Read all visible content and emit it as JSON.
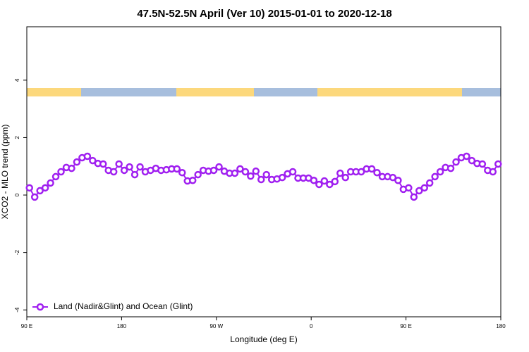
{
  "chart_data": {
    "type": "line",
    "title": "47.5N-52.5N April (Ver 10)   2015-01-01 to 2020-12-18",
    "x_label": "Longitude (deg E)",
    "y_label": "XCO2 - MLO trend (ppm)",
    "xlim": [
      90,
      540
    ],
    "ylim": [
      -4.24,
      5.86
    ],
    "xticks": [
      {
        "value": 90,
        "label": "90 E"
      },
      180,
      {
        "value": 270,
        "label": "90 W"
      },
      {
        "value": 360,
        "label": "0"
      },
      {
        "value": 450,
        "label": "90 E"
      },
      {
        "value": 540,
        "label": "180"
      }
    ],
    "yticks": [
      -4,
      -2,
      0,
      2,
      4
    ],
    "legend": "bottom-left",
    "x": [
      92.5,
      97.5,
      102.5,
      107.5,
      112.5,
      117.5,
      122.5,
      127.5,
      132.5,
      137.5,
      142.5,
      147.5,
      152.5,
      157.5,
      162.5,
      167.5,
      172.5,
      177.5,
      182.5,
      187.5,
      192.5,
      197.5,
      202.5,
      207.5,
      212.5,
      217.5,
      222.5,
      227.5,
      232.5,
      237.5,
      242.5,
      247.5,
      252.5,
      257.5,
      262.5,
      267.5,
      272.5,
      277.5,
      282.5,
      287.5,
      292.5,
      297.5,
      302.5,
      307.5,
      312.5,
      317.5,
      322.5,
      327.5,
      332.5,
      337.5,
      342.5,
      347.5,
      352.5,
      357.5,
      362.5,
      367.5,
      372.5,
      377.5,
      382.5,
      387.5,
      392.5,
      397.5,
      402.5,
      407.5,
      412.5,
      417.5,
      422.5,
      427.5,
      432.5,
      437.5,
      442.5,
      447.5,
      452.5,
      457.5,
      462.5,
      467.5,
      472.5,
      477.5,
      482.5,
      487.5,
      492.5,
      497.5,
      502.5,
      507.5,
      512.5,
      517.5,
      522.5,
      527.5,
      532.5,
      537.5
    ],
    "series": [
      {
        "name": "Land (Nadir&Glint) and Ocean (Glint)",
        "color": "#a020f0",
        "values": [
          0.25,
          -0.07,
          0.15,
          0.25,
          0.42,
          0.64,
          0.81,
          0.96,
          0.93,
          1.15,
          1.3,
          1.35,
          1.2,
          1.1,
          1.08,
          0.86,
          0.81,
          1.08,
          0.86,
          0.98,
          0.71,
          0.98,
          0.81,
          0.86,
          0.93,
          0.86,
          0.88,
          0.91,
          0.91,
          0.78,
          0.49,
          0.51,
          0.71,
          0.86,
          0.83,
          0.86,
          0.98,
          0.83,
          0.76,
          0.76,
          0.91,
          0.81,
          0.66,
          0.83,
          0.54,
          0.71,
          0.54,
          0.56,
          0.61,
          0.74,
          0.81,
          0.59,
          0.59,
          0.59,
          0.51,
          0.37,
          0.49,
          0.37,
          0.47,
          0.76,
          0.61,
          0.81,
          0.81,
          0.81,
          0.91,
          0.91,
          0.78,
          0.64,
          0.64,
          0.61,
          0.51,
          0.2,
          0.25,
          -0.07,
          0.15,
          0.25,
          0.42,
          0.64,
          0.81,
          0.96,
          0.93,
          1.15,
          1.3,
          1.35,
          1.2,
          1.1,
          1.08,
          0.86,
          0.81,
          1.08
        ]
      }
    ]
  }
}
